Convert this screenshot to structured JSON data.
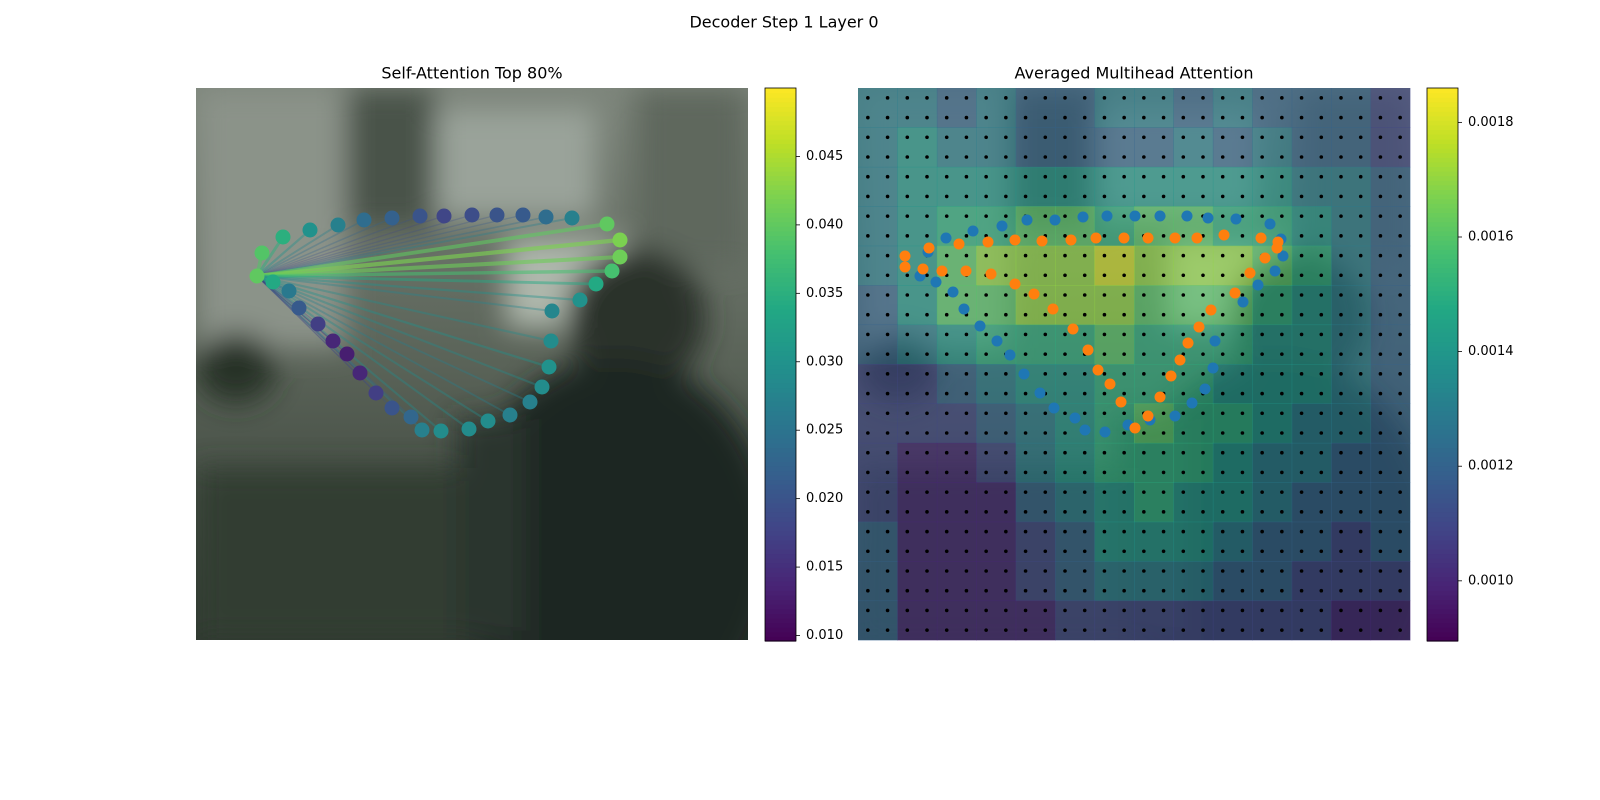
{
  "title": "Decoder Step 1 Layer 0",
  "chart_data": [
    {
      "type": "scatter",
      "title": "Self-Attention Top 80%",
      "colormap": "viridis",
      "source": 39,
      "xlim": [
        0,
        552
      ],
      "ylim": [
        0,
        552
      ],
      "clim": [
        0.0096,
        0.05
      ],
      "colorbar_ticks": [
        {
          "value": 0.01,
          "label": "0.010"
        },
        0.015,
        {
          "value": 0.02,
          "label": "0.020"
        },
        0.025,
        {
          "value": 0.03,
          "label": "0.030"
        },
        0.035,
        {
          "value": 0.04,
          "label": "0.040"
        },
        0.045
      ],
      "x": [
        66,
        87,
        114,
        142,
        168,
        196,
        224,
        248,
        276,
        301,
        327,
        350,
        376,
        411,
        424,
        424,
        416,
        400,
        384,
        356,
        355,
        353,
        346,
        334,
        314,
        292,
        273,
        245,
        226,
        215,
        196,
        180,
        164,
        151,
        137,
        122,
        103,
        93,
        77,
        61
      ],
      "y": [
        165,
        149,
        142,
        137,
        132,
        130,
        128,
        128,
        127,
        127,
        127,
        129,
        130,
        136,
        152,
        169,
        183,
        196,
        212,
        223,
        253,
        279,
        299,
        314,
        327,
        333,
        341,
        343,
        342,
        329,
        320,
        305,
        285,
        266,
        253,
        236,
        220,
        203,
        194,
        188
      ],
      "values": [
        0.039,
        0.035,
        0.03,
        0.027,
        0.024,
        0.022,
        0.02,
        0.018,
        0.019,
        0.02,
        0.021,
        0.024,
        0.027,
        0.04,
        0.042,
        0.041,
        0.038,
        0.034,
        0.03,
        0.028,
        0.029,
        0.03,
        0.029,
        0.027,
        0.027,
        0.029,
        0.029,
        0.029,
        0.027,
        0.023,
        0.02,
        0.017,
        0.014,
        0.013,
        0.014,
        0.017,
        0.021,
        0.026,
        0.034,
        0.04
      ]
    },
    {
      "type": "heatmap",
      "title": "Averaged Multihead Attention",
      "colormap": "viridis",
      "grid_dots": 28,
      "xlim": [
        0,
        552
      ],
      "ylim": [
        0,
        552
      ],
      "clim": [
        0.000895,
        0.00186
      ],
      "colorbar_ticks": [
        {
          "value": 0.001,
          "label": "0.0010"
        },
        0.0012,
        0.0014,
        0.0016,
        0.0018
      ],
      "values": [
        [
          0.0013,
          0.0013,
          0.0012,
          0.0013,
          0.0012,
          0.0012,
          0.0013,
          0.0013,
          0.0012,
          0.0013,
          0.0012,
          0.0012,
          0.0012,
          0.0011
        ],
        [
          0.0013,
          0.0014,
          0.0013,
          0.0013,
          0.0012,
          0.0012,
          0.0012,
          0.0012,
          0.0013,
          0.0012,
          0.0013,
          0.0012,
          0.0012,
          0.0011
        ],
        [
          0.0013,
          0.0014,
          0.0014,
          0.0014,
          0.0014,
          0.0014,
          0.0014,
          0.0014,
          0.0014,
          0.0014,
          0.0014,
          0.0013,
          0.0013,
          0.0012
        ],
        [
          0.0013,
          0.0014,
          0.0015,
          0.0015,
          0.0016,
          0.0016,
          0.0015,
          0.0016,
          0.0016,
          0.0015,
          0.0015,
          0.0014,
          0.0013,
          0.0012
        ],
        [
          0.0013,
          0.0014,
          0.0016,
          0.0017,
          0.0017,
          0.0017,
          0.0018,
          0.0017,
          0.0017,
          0.0017,
          0.0016,
          0.0015,
          0.0013,
          0.0012
        ],
        [
          0.0012,
          0.0014,
          0.0016,
          0.0016,
          0.0017,
          0.0017,
          0.0017,
          0.0016,
          0.0016,
          0.0016,
          0.0015,
          0.0014,
          0.0013,
          0.0012
        ],
        [
          0.0012,
          0.0013,
          0.0014,
          0.0015,
          0.0015,
          0.0015,
          0.0016,
          0.0015,
          0.0015,
          0.0015,
          0.0014,
          0.0014,
          0.0013,
          0.0012
        ],
        [
          0.0011,
          0.0011,
          0.0012,
          0.0013,
          0.0014,
          0.0014,
          0.0015,
          0.0015,
          0.0015,
          0.0014,
          0.0014,
          0.0014,
          0.0013,
          0.0012
        ],
        [
          0.0011,
          0.0011,
          0.0011,
          0.0012,
          0.0013,
          0.0014,
          0.0015,
          0.0016,
          0.0015,
          0.0015,
          0.0014,
          0.0013,
          0.0013,
          0.0012
        ],
        [
          0.0011,
          0.001,
          0.001,
          0.0011,
          0.0013,
          0.0014,
          0.0015,
          0.0015,
          0.0015,
          0.0014,
          0.0013,
          0.0013,
          0.0012,
          0.0012
        ],
        [
          0.0011,
          0.001,
          0.001,
          0.001,
          0.0012,
          0.0013,
          0.0014,
          0.0015,
          0.0014,
          0.0014,
          0.0013,
          0.0012,
          0.0012,
          0.0012
        ],
        [
          0.0012,
          0.001,
          0.001,
          0.001,
          0.0011,
          0.0012,
          0.0014,
          0.0014,
          0.0014,
          0.0013,
          0.0012,
          0.0012,
          0.0011,
          0.0012
        ],
        [
          0.0012,
          0.001,
          0.001,
          0.001,
          0.0011,
          0.0012,
          0.0013,
          0.0013,
          0.0013,
          0.0012,
          0.0012,
          0.0011,
          0.0011,
          0.0011
        ],
        [
          0.0012,
          0.001,
          0.001,
          0.001,
          0.001,
          0.0011,
          0.0011,
          0.0011,
          0.0011,
          0.0011,
          0.0011,
          0.0011,
          0.001,
          0.001
        ]
      ],
      "series": [
        {
          "color": "#1f77b4",
          "x": [
            62,
            78,
            95,
            106,
            122,
            139,
            152,
            166,
            182,
            196,
            217,
            227,
            247,
            270,
            292,
            317,
            334,
            347,
            355,
            357,
            385,
            400,
            417,
            425,
            423,
            412,
            378,
            350,
            329,
            302,
            277,
            249,
            225,
            197,
            169,
            144,
            115,
            88,
            70
          ],
          "y": [
            188,
            194,
            204,
            221,
            238,
            253,
            267,
            286,
            305,
            320,
            330,
            342,
            344,
            337,
            332,
            328,
            315,
            301,
            280,
            253,
            214,
            197,
            183,
            168,
            151,
            136,
            131,
            130,
            128,
            128,
            128,
            128,
            129,
            132,
            132,
            138,
            143,
            150,
            164
          ]
        },
        {
          "color": "#ff7f0e",
          "x": [
            47,
            47,
            65,
            84,
            108,
            133,
            157,
            176,
            195,
            215,
            230,
            240,
            252,
            263,
            277,
            290,
            302,
            313,
            322,
            330,
            341,
            353,
            377,
            392,
            407,
            419,
            420,
            403,
            366,
            339,
            317,
            290,
            266,
            238,
            213,
            184,
            157,
            130,
            101,
            71
          ],
          "y": [
            168,
            179,
            181,
            183,
            183,
            186,
            196,
            206,
            221,
            241,
            262,
            282,
            296,
            314,
            340,
            328,
            309,
            288,
            272,
            255,
            239,
            222,
            205,
            185,
            170,
            160,
            154,
            150,
            147,
            150,
            150,
            150,
            150,
            150,
            152,
            153,
            152,
            154,
            156,
            160
          ]
        }
      ]
    }
  ]
}
